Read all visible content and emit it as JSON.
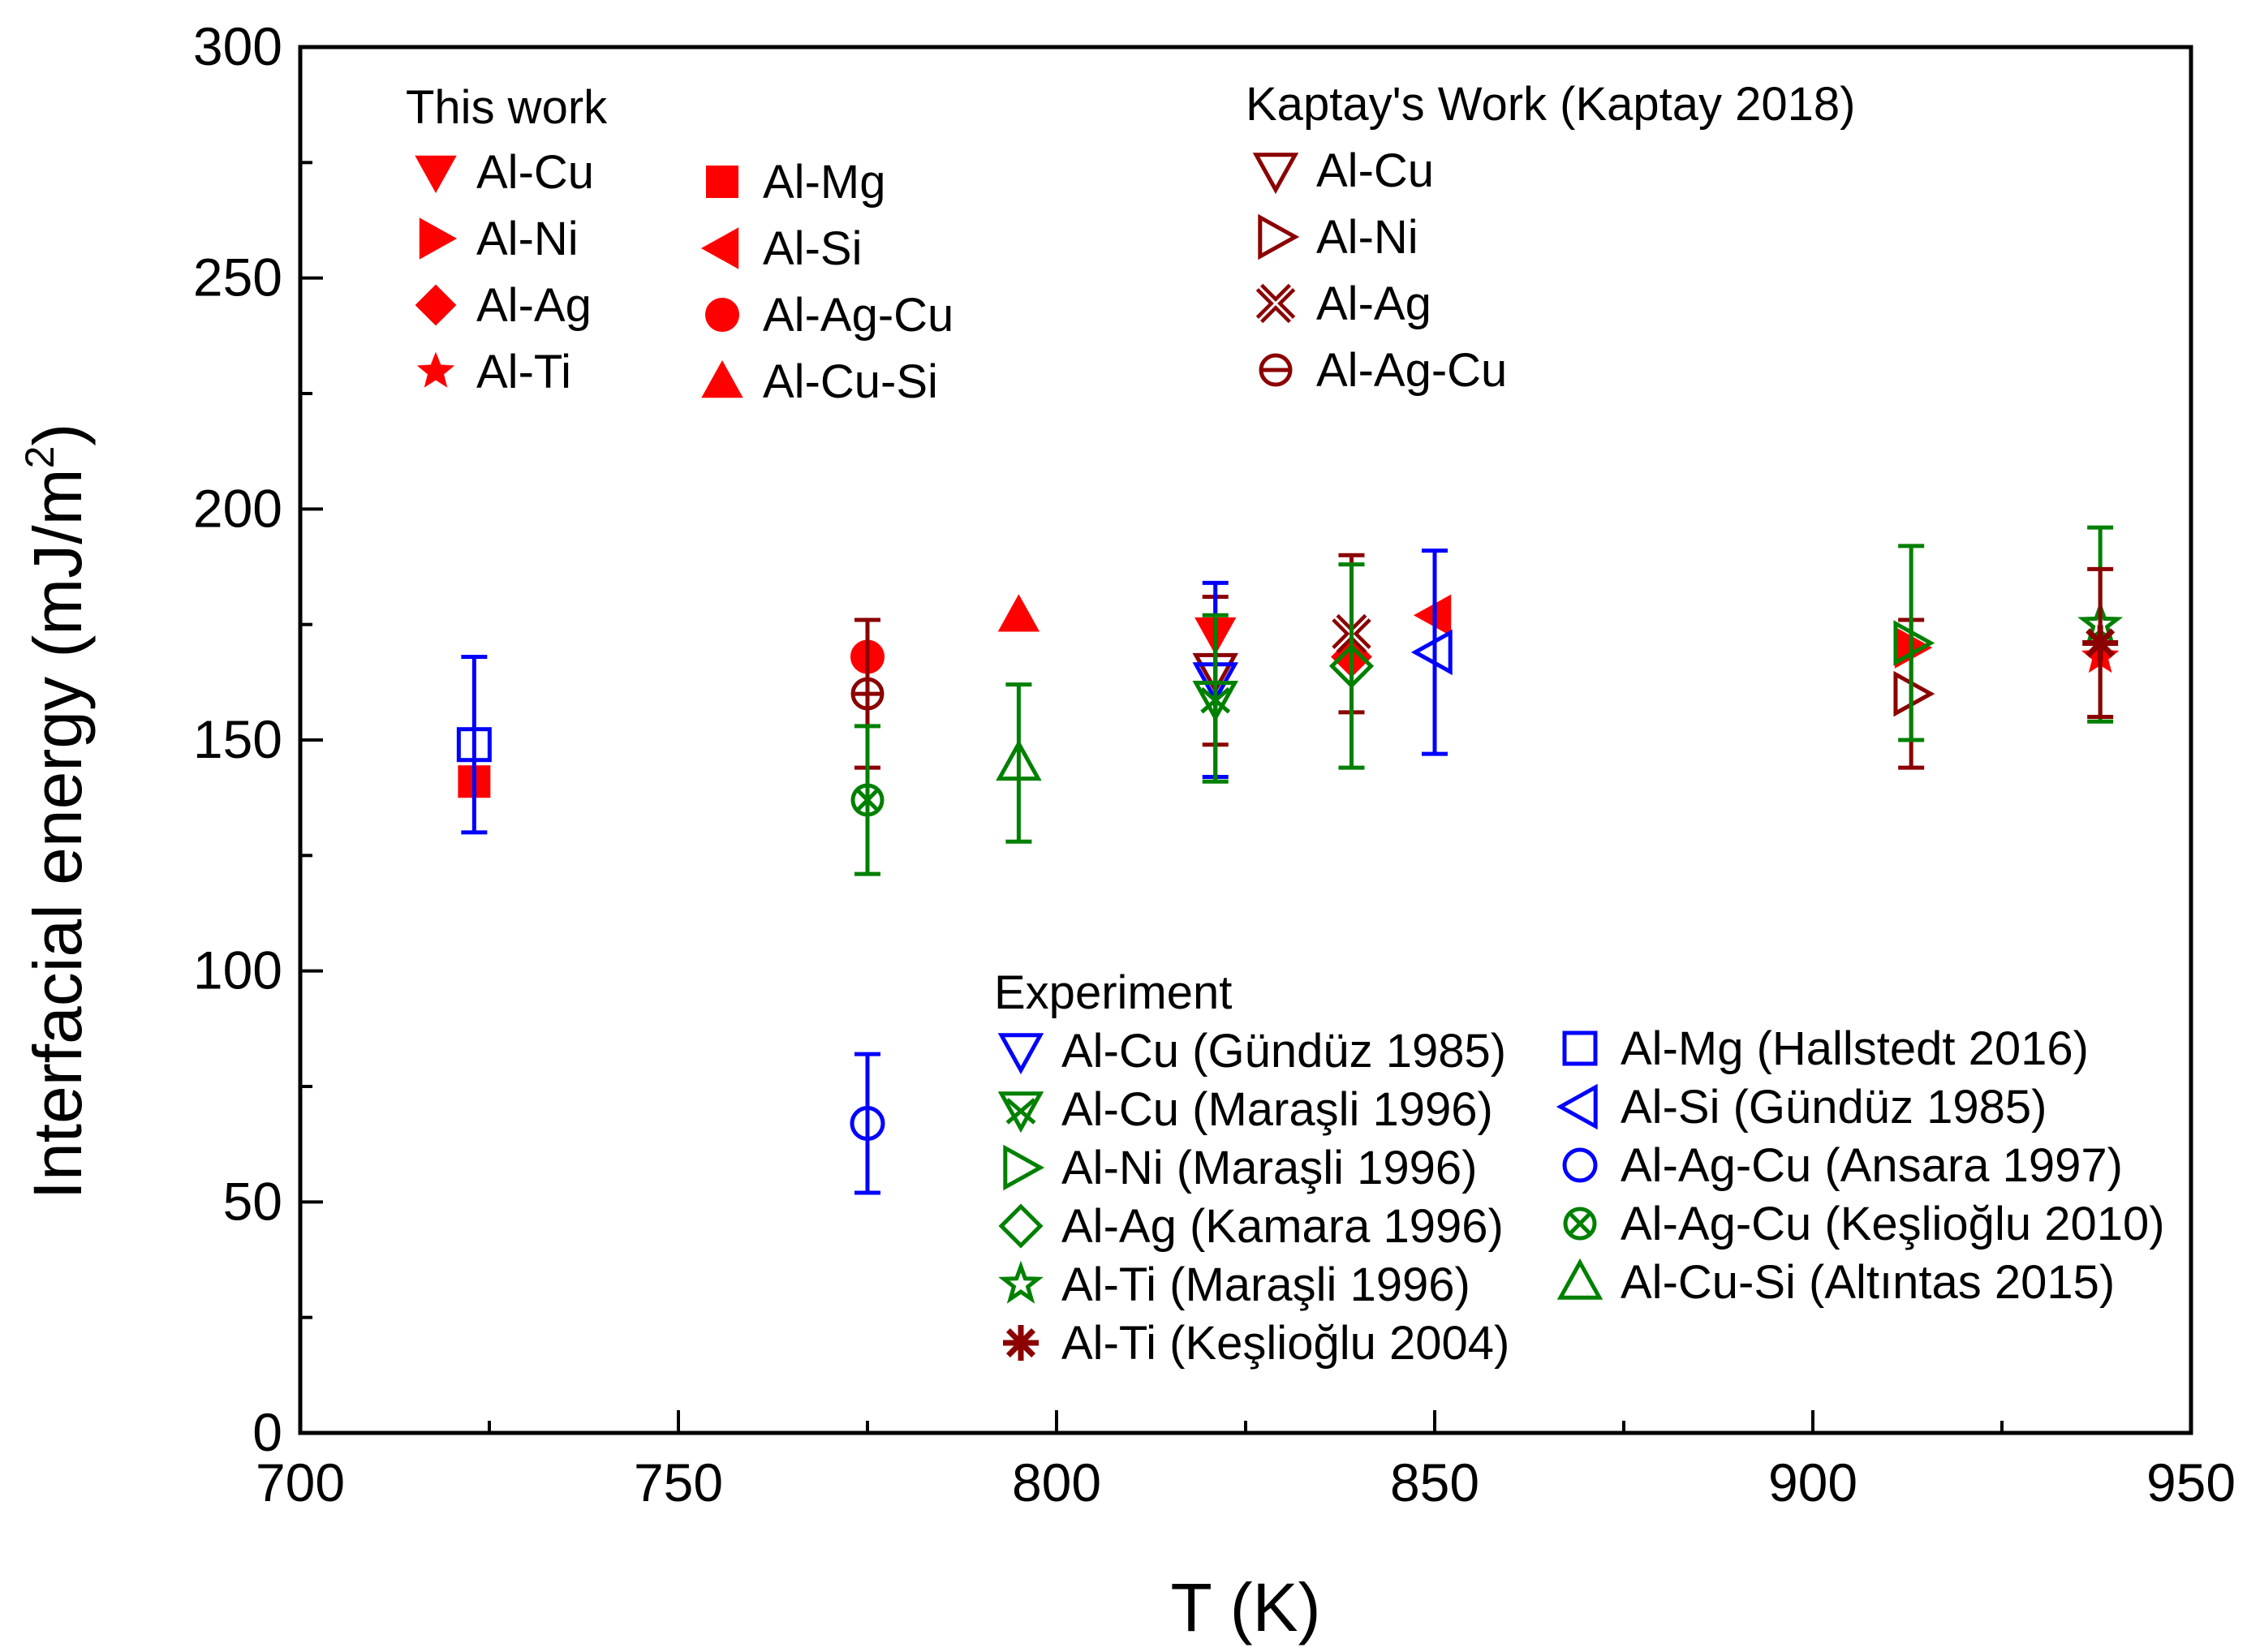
{
  "chart_data": {
    "type": "scatter",
    "xlabel": "T (K)",
    "ylabel_main": "Interfacial energy (mJ/m",
    "ylabel_sup": "2",
    "ylabel_close": ")",
    "xlim": [
      700,
      950
    ],
    "ylim": [
      0,
      300
    ],
    "xticks": [
      700,
      750,
      800,
      850,
      900,
      950
    ],
    "yticks": [
      0,
      50,
      100,
      150,
      200,
      250,
      300
    ],
    "grid": false,
    "legend_groups": [
      {
        "title": "This work",
        "placement": "top-left"
      },
      {
        "title": "Kaptay's Work (Kaptay 2018)",
        "placement": "top-right"
      },
      {
        "title": "Experiment",
        "placement": "bottom-right"
      }
    ],
    "series": [
      {
        "name": "Al-Cu",
        "group": "This work",
        "marker": "tri-down",
        "fill": true,
        "color": "#ff0000",
        "points": [
          {
            "x": 821,
            "y": 173
          }
        ]
      },
      {
        "name": "Al-Ni",
        "group": "This work",
        "marker": "tri-right",
        "fill": true,
        "color": "#ff0000",
        "points": [
          {
            "x": 913,
            "y": 170
          }
        ]
      },
      {
        "name": "Al-Ag",
        "group": "This work",
        "marker": "diamond",
        "fill": true,
        "color": "#ff0000",
        "points": [
          {
            "x": 839,
            "y": 168
          }
        ]
      },
      {
        "name": "Al-Ti",
        "group": "This work",
        "marker": "star",
        "fill": true,
        "color": "#ff0000",
        "points": [
          {
            "x": 938,
            "y": 168
          }
        ]
      },
      {
        "name": "Al-Mg",
        "group": "This work",
        "marker": "square",
        "fill": true,
        "color": "#ff0000",
        "points": [
          {
            "x": 723,
            "y": 141
          }
        ]
      },
      {
        "name": "Al-Si",
        "group": "This work",
        "marker": "tri-left",
        "fill": true,
        "color": "#ff0000",
        "points": [
          {
            "x": 850,
            "y": 177
          }
        ]
      },
      {
        "name": "Al-Ag-Cu",
        "group": "This work",
        "marker": "circle",
        "fill": true,
        "color": "#ff0000",
        "points": [
          {
            "x": 775,
            "y": 168
          }
        ]
      },
      {
        "name": "Al-Cu-Si",
        "group": "This work",
        "marker": "tri-up",
        "fill": true,
        "color": "#ff0000",
        "points": [
          {
            "x": 795,
            "y": 177
          }
        ]
      },
      {
        "name": "Al-Cu",
        "group": "Kaptay's Work (Kaptay 2018)",
        "marker": "tri-down",
        "fill": false,
        "color": "#8b0000",
        "points": [
          {
            "x": 821,
            "y": 165,
            "err": 16
          }
        ]
      },
      {
        "name": "Al-Ni",
        "group": "Kaptay's Work (Kaptay 2018)",
        "marker": "tri-right",
        "fill": false,
        "color": "#8b0000",
        "points": [
          {
            "x": 913,
            "y": 160,
            "err": 16
          }
        ]
      },
      {
        "name": "Al-Ag",
        "group": "Kaptay's Work (Kaptay 2018)",
        "marker": "xcross",
        "fill": false,
        "color": "#8b0000",
        "points": [
          {
            "x": 839,
            "y": 173,
            "err": 17
          }
        ]
      },
      {
        "name": "Al-Ag-Cu",
        "group": "Kaptay's Work (Kaptay 2018)",
        "marker": "circle-bar",
        "fill": false,
        "color": "#8b0000",
        "points": [
          {
            "x": 775,
            "y": 160,
            "err": 16
          }
        ]
      },
      {
        "name": "Al-Cu (Gündüz 1985)",
        "group": "Experiment",
        "marker": "tri-down",
        "fill": false,
        "color": "#0000ff",
        "points": [
          {
            "x": 821,
            "y": 163,
            "err": 21
          }
        ]
      },
      {
        "name": "Al-Cu (Maraşli 1996)",
        "group": "Experiment",
        "marker": "tri-down-x",
        "fill": false,
        "color": "#008000",
        "points": [
          {
            "x": 821,
            "y": 159,
            "err": 18
          }
        ]
      },
      {
        "name": "Al-Ni  (Maraşli 1996)",
        "group": "Experiment",
        "marker": "tri-right",
        "fill": false,
        "color": "#008000",
        "points": [
          {
            "x": 913,
            "y": 171,
            "err": 21
          }
        ]
      },
      {
        "name": "Al-Ag (Kamara 1996)",
        "group": "Experiment",
        "marker": "diamond",
        "fill": false,
        "color": "#008000",
        "points": [
          {
            "x": 839,
            "y": 166,
            "err": 22
          }
        ]
      },
      {
        "name": "Al-Ti  (Maraşli 1996)",
        "group": "Experiment",
        "marker": "star",
        "fill": false,
        "color": "#008000",
        "points": [
          {
            "x": 938,
            "y": 175,
            "err": 21
          }
        ]
      },
      {
        "name": "Al-Ti  (Keşlioğlu 2004)",
        "group": "Experiment",
        "marker": "asterisk",
        "fill": false,
        "color": "#8b0000",
        "points": [
          {
            "x": 938,
            "y": 171,
            "err": 16
          }
        ]
      },
      {
        "name": "Al-Mg (Hallstedt 2016)",
        "group": "Experiment",
        "marker": "square",
        "fill": false,
        "color": "#0000ff",
        "points": [
          {
            "x": 723,
            "y": 149,
            "err": 19
          }
        ]
      },
      {
        "name": "Al-Si   (Gündüz 1985)",
        "group": "Experiment",
        "marker": "tri-left",
        "fill": false,
        "color": "#0000ff",
        "points": [
          {
            "x": 850,
            "y": 169,
            "err": 22
          }
        ]
      },
      {
        "name": "Al-Ag-Cu (Ansara 1997)",
        "group": "Experiment",
        "marker": "circle",
        "fill": false,
        "color": "#0000ff",
        "points": [
          {
            "x": 775,
            "y": 67,
            "err": 15
          }
        ]
      },
      {
        "name": "Al-Ag-Cu (Keşlioğlu 2010)",
        "group": "Experiment",
        "marker": "circle-x",
        "fill": false,
        "color": "#008000",
        "points": [
          {
            "x": 775,
            "y": 137,
            "err": 16
          }
        ]
      },
      {
        "name": "Al-Cu-Si  (Altıntas 2015)",
        "group": "Experiment",
        "marker": "tri-up",
        "fill": false,
        "color": "#008000",
        "points": [
          {
            "x": 795,
            "y": 145,
            "err": 17
          }
        ]
      }
    ]
  }
}
